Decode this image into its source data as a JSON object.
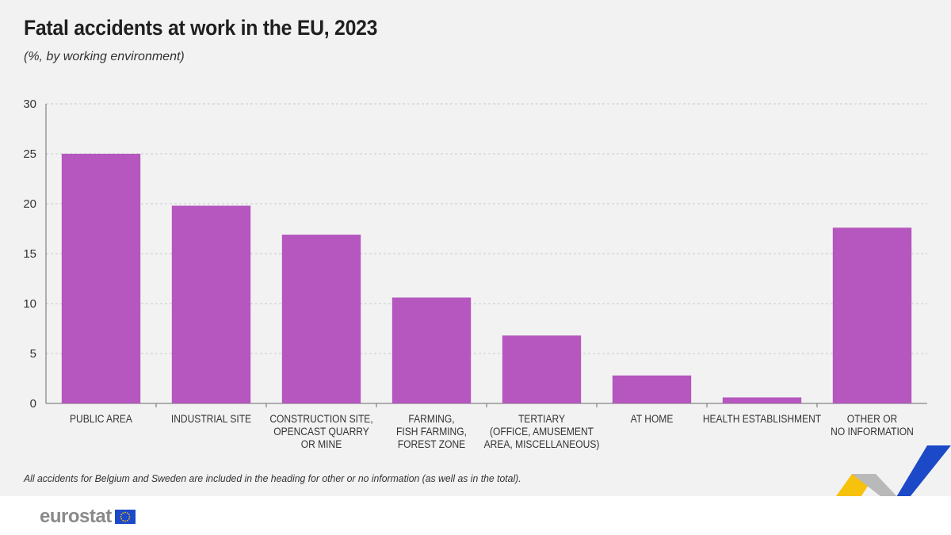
{
  "header": {
    "title": "Fatal accidents at work in the EU, 2023",
    "subtitle": "(%, by working environment)"
  },
  "footnote": "All accidents for Belgium and Sweden are included in the heading for other or no information (as well as in the total).",
  "footer": {
    "logo_text": "eurostat",
    "flag_icon": "eu-flag-icon"
  },
  "colors": {
    "bar": "#b557be",
    "grid": "#c9c9c9",
    "axis": "#6b6b6b",
    "text": "#333333",
    "background": "#f2f2f2",
    "accent_yellow": "#f7c20b",
    "accent_blue": "#1c49c8"
  },
  "chart_data": {
    "type": "bar",
    "categories": [
      "PUBLIC AREA",
      "INDUSTRIAL SITE",
      "CONSTRUCTION SITE,\nOPENCAST QUARRY\nOR MINE",
      "FARMING,\nFISH FARMING,\nFOREST ZONE",
      "TERTIARY\n(OFFICE, AMUSEMENT\nAREA, MISCELLANEOUS)",
      "AT HOME",
      "HEALTH ESTABLISHMENT",
      "OTHER OR\nNO INFORMATION"
    ],
    "values": [
      25.0,
      19.8,
      16.9,
      10.6,
      6.8,
      2.8,
      0.6,
      17.6
    ],
    "ylim": [
      0,
      30
    ],
    "yticks": [
      0,
      5,
      10,
      15,
      20,
      25,
      30
    ],
    "grid": true,
    "xlabel": "",
    "ylabel": ""
  }
}
